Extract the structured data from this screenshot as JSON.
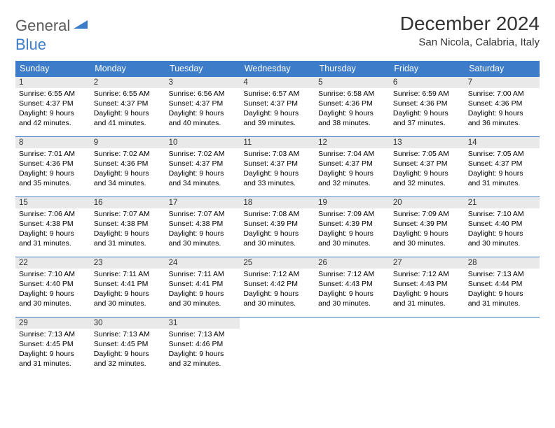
{
  "logo": {
    "part1": "General",
    "part2": "Blue"
  },
  "title": "December 2024",
  "location": "San Nicola, Calabria, Italy",
  "colors": {
    "header_bg": "#3d7cc9",
    "header_fg": "#ffffff",
    "daynum_bg": "#e9e9e9",
    "week_border": "#3d7cc9",
    "logo_gray": "#5a5a5a",
    "logo_blue": "#3d7cc9"
  },
  "days_of_week": [
    "Sunday",
    "Monday",
    "Tuesday",
    "Wednesday",
    "Thursday",
    "Friday",
    "Saturday"
  ],
  "weeks": [
    [
      {
        "n": "1",
        "sr": "6:55 AM",
        "ss": "4:37 PM",
        "dl": "9 hours and 42 minutes."
      },
      {
        "n": "2",
        "sr": "6:55 AM",
        "ss": "4:37 PM",
        "dl": "9 hours and 41 minutes."
      },
      {
        "n": "3",
        "sr": "6:56 AM",
        "ss": "4:37 PM",
        "dl": "9 hours and 40 minutes."
      },
      {
        "n": "4",
        "sr": "6:57 AM",
        "ss": "4:37 PM",
        "dl": "9 hours and 39 minutes."
      },
      {
        "n": "5",
        "sr": "6:58 AM",
        "ss": "4:36 PM",
        "dl": "9 hours and 38 minutes."
      },
      {
        "n": "6",
        "sr": "6:59 AM",
        "ss": "4:36 PM",
        "dl": "9 hours and 37 minutes."
      },
      {
        "n": "7",
        "sr": "7:00 AM",
        "ss": "4:36 PM",
        "dl": "9 hours and 36 minutes."
      }
    ],
    [
      {
        "n": "8",
        "sr": "7:01 AM",
        "ss": "4:36 PM",
        "dl": "9 hours and 35 minutes."
      },
      {
        "n": "9",
        "sr": "7:02 AM",
        "ss": "4:36 PM",
        "dl": "9 hours and 34 minutes."
      },
      {
        "n": "10",
        "sr": "7:02 AM",
        "ss": "4:37 PM",
        "dl": "9 hours and 34 minutes."
      },
      {
        "n": "11",
        "sr": "7:03 AM",
        "ss": "4:37 PM",
        "dl": "9 hours and 33 minutes."
      },
      {
        "n": "12",
        "sr": "7:04 AM",
        "ss": "4:37 PM",
        "dl": "9 hours and 32 minutes."
      },
      {
        "n": "13",
        "sr": "7:05 AM",
        "ss": "4:37 PM",
        "dl": "9 hours and 32 minutes."
      },
      {
        "n": "14",
        "sr": "7:05 AM",
        "ss": "4:37 PM",
        "dl": "9 hours and 31 minutes."
      }
    ],
    [
      {
        "n": "15",
        "sr": "7:06 AM",
        "ss": "4:38 PM",
        "dl": "9 hours and 31 minutes."
      },
      {
        "n": "16",
        "sr": "7:07 AM",
        "ss": "4:38 PM",
        "dl": "9 hours and 31 minutes."
      },
      {
        "n": "17",
        "sr": "7:07 AM",
        "ss": "4:38 PM",
        "dl": "9 hours and 30 minutes."
      },
      {
        "n": "18",
        "sr": "7:08 AM",
        "ss": "4:39 PM",
        "dl": "9 hours and 30 minutes."
      },
      {
        "n": "19",
        "sr": "7:09 AM",
        "ss": "4:39 PM",
        "dl": "9 hours and 30 minutes."
      },
      {
        "n": "20",
        "sr": "7:09 AM",
        "ss": "4:39 PM",
        "dl": "9 hours and 30 minutes."
      },
      {
        "n": "21",
        "sr": "7:10 AM",
        "ss": "4:40 PM",
        "dl": "9 hours and 30 minutes."
      }
    ],
    [
      {
        "n": "22",
        "sr": "7:10 AM",
        "ss": "4:40 PM",
        "dl": "9 hours and 30 minutes."
      },
      {
        "n": "23",
        "sr": "7:11 AM",
        "ss": "4:41 PM",
        "dl": "9 hours and 30 minutes."
      },
      {
        "n": "24",
        "sr": "7:11 AM",
        "ss": "4:41 PM",
        "dl": "9 hours and 30 minutes."
      },
      {
        "n": "25",
        "sr": "7:12 AM",
        "ss": "4:42 PM",
        "dl": "9 hours and 30 minutes."
      },
      {
        "n": "26",
        "sr": "7:12 AM",
        "ss": "4:43 PM",
        "dl": "9 hours and 30 minutes."
      },
      {
        "n": "27",
        "sr": "7:12 AM",
        "ss": "4:43 PM",
        "dl": "9 hours and 31 minutes."
      },
      {
        "n": "28",
        "sr": "7:13 AM",
        "ss": "4:44 PM",
        "dl": "9 hours and 31 minutes."
      }
    ],
    [
      {
        "n": "29",
        "sr": "7:13 AM",
        "ss": "4:45 PM",
        "dl": "9 hours and 31 minutes."
      },
      {
        "n": "30",
        "sr": "7:13 AM",
        "ss": "4:45 PM",
        "dl": "9 hours and 32 minutes."
      },
      {
        "n": "31",
        "sr": "7:13 AM",
        "ss": "4:46 PM",
        "dl": "9 hours and 32 minutes."
      },
      null,
      null,
      null,
      null
    ]
  ],
  "labels": {
    "sunrise": "Sunrise:",
    "sunset": "Sunset:",
    "daylight": "Daylight:"
  }
}
